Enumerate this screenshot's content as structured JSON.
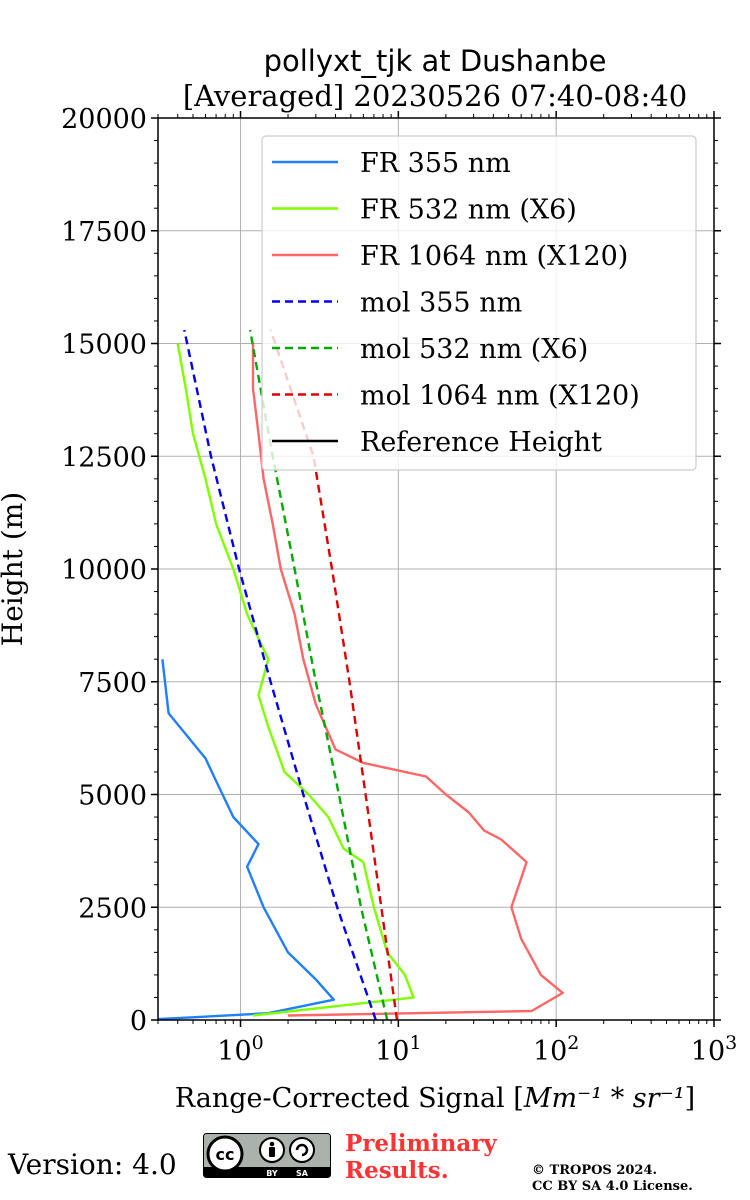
{
  "chart_data": {
    "type": "line",
    "title_line1": "pollyxt_tjk at Dushanbe",
    "title_line2": "[Averaged] 20230526 07:40-08:40",
    "xlabel_prefix": "Range-Corrected Signal [",
    "xlabel_math": "Mm⁻¹ * sr⁻¹",
    "xlabel_suffix": "]",
    "ylabel": "Height (m)",
    "xscale": "log",
    "xlim": [
      0.3,
      1000
    ],
    "ylim": [
      0,
      20000
    ],
    "yticks": [
      "0",
      "2500",
      "5000",
      "7500",
      "10000",
      "12500",
      "15000",
      "17500",
      "20000"
    ],
    "xticks": [
      {
        "base": "10",
        "exp": "0",
        "value": 1
      },
      {
        "base": "10",
        "exp": "1",
        "value": 10
      },
      {
        "base": "10",
        "exp": "2",
        "value": 100
      },
      {
        "base": "10",
        "exp": "3",
        "value": 1000
      }
    ],
    "grid": true,
    "legend_position": "top-right",
    "series": [
      {
        "name": "FR 355 nm",
        "style": "solid",
        "color": "#1f7fff",
        "points": [
          [
            0.3,
            20
          ],
          [
            0.5,
            60
          ],
          [
            1.5,
            150
          ],
          [
            3.9,
            450
          ],
          [
            3.0,
            900
          ],
          [
            2.0,
            1500
          ],
          [
            1.4,
            2500
          ],
          [
            1.1,
            3400
          ],
          [
            1.3,
            3900
          ],
          [
            0.9,
            4500
          ],
          [
            0.7,
            5300
          ],
          [
            0.6,
            5800
          ],
          [
            0.35,
            6800
          ],
          [
            0.32,
            8000
          ]
        ]
      },
      {
        "name": "FR 532 nm (X6)",
        "style": "solid",
        "color": "#7fff00",
        "points": [
          [
            1.2,
            100
          ],
          [
            12.5,
            500
          ],
          [
            11.0,
            1000
          ],
          [
            8.5,
            1500
          ],
          [
            7.0,
            2500
          ],
          [
            6.0,
            3500
          ],
          [
            4.5,
            3800
          ],
          [
            3.6,
            4500
          ],
          [
            2.7,
            5000
          ],
          [
            1.9,
            5500
          ],
          [
            1.5,
            6500
          ],
          [
            1.3,
            7200
          ],
          [
            1.5,
            8000
          ],
          [
            1.1,
            9000
          ],
          [
            0.9,
            10000
          ],
          [
            0.7,
            11000
          ],
          [
            0.6,
            12000
          ],
          [
            0.5,
            13000
          ],
          [
            0.45,
            14000
          ],
          [
            0.4,
            15000
          ]
        ]
      },
      {
        "name": "FR 1064 nm (X120)",
        "style": "solid",
        "color": "#ff6666",
        "points": [
          [
            2.0,
            100
          ],
          [
            70,
            200
          ],
          [
            110,
            600
          ],
          [
            80,
            1000
          ],
          [
            60,
            1800
          ],
          [
            52,
            2500
          ],
          [
            65,
            3500
          ],
          [
            45,
            4000
          ],
          [
            35,
            4200
          ],
          [
            28,
            4600
          ],
          [
            20,
            5000
          ],
          [
            15,
            5400
          ],
          [
            6,
            5700
          ],
          [
            4,
            6000
          ],
          [
            3,
            7000
          ],
          [
            2.5,
            8000
          ],
          [
            2.2,
            9000
          ],
          [
            1.8,
            10000
          ],
          [
            1.6,
            11000
          ],
          [
            1.4,
            12000
          ],
          [
            1.3,
            13000
          ],
          [
            1.2,
            14000
          ],
          [
            1.2,
            15000
          ]
        ]
      },
      {
        "name": "mol 355 nm",
        "style": "dashed",
        "color": "#0000ee",
        "points": [
          [
            7.2,
            0
          ],
          [
            4.1,
            2500
          ],
          [
            2.5,
            5000
          ],
          [
            1.55,
            7500
          ],
          [
            0.98,
            10000
          ],
          [
            0.65,
            12500
          ],
          [
            0.44,
            15300
          ]
        ]
      },
      {
        "name": "mol 532 nm (X6)",
        "style": "dashed",
        "color": "#00aa00",
        "points": [
          [
            8.5,
            0
          ],
          [
            5.8,
            2500
          ],
          [
            4.2,
            5000
          ],
          [
            3.0,
            7500
          ],
          [
            2.2,
            10000
          ],
          [
            1.6,
            12500
          ],
          [
            1.15,
            15300
          ]
        ]
      },
      {
        "name": "mol 1064 nm (X120)",
        "style": "dashed",
        "color": "#dd0000",
        "points": [
          [
            9.8,
            0
          ],
          [
            7.8,
            2500
          ],
          [
            6.2,
            5000
          ],
          [
            4.9,
            7500
          ],
          [
            3.8,
            10000
          ],
          [
            2.9,
            12500
          ],
          [
            1.55,
            15300
          ]
        ]
      },
      {
        "name": "Reference Height",
        "style": "solid",
        "color": "#000000",
        "points": []
      }
    ]
  },
  "footer": {
    "version": "Version: 4.0",
    "cc_text": "cc",
    "cc_by": "BY",
    "cc_sa": "SA",
    "preliminary_line1": "Preliminary",
    "preliminary_line2": "Results.",
    "copyright_line1": "© TROPOS 2024.",
    "copyright_line2": "CC BY SA 4.0 License."
  }
}
